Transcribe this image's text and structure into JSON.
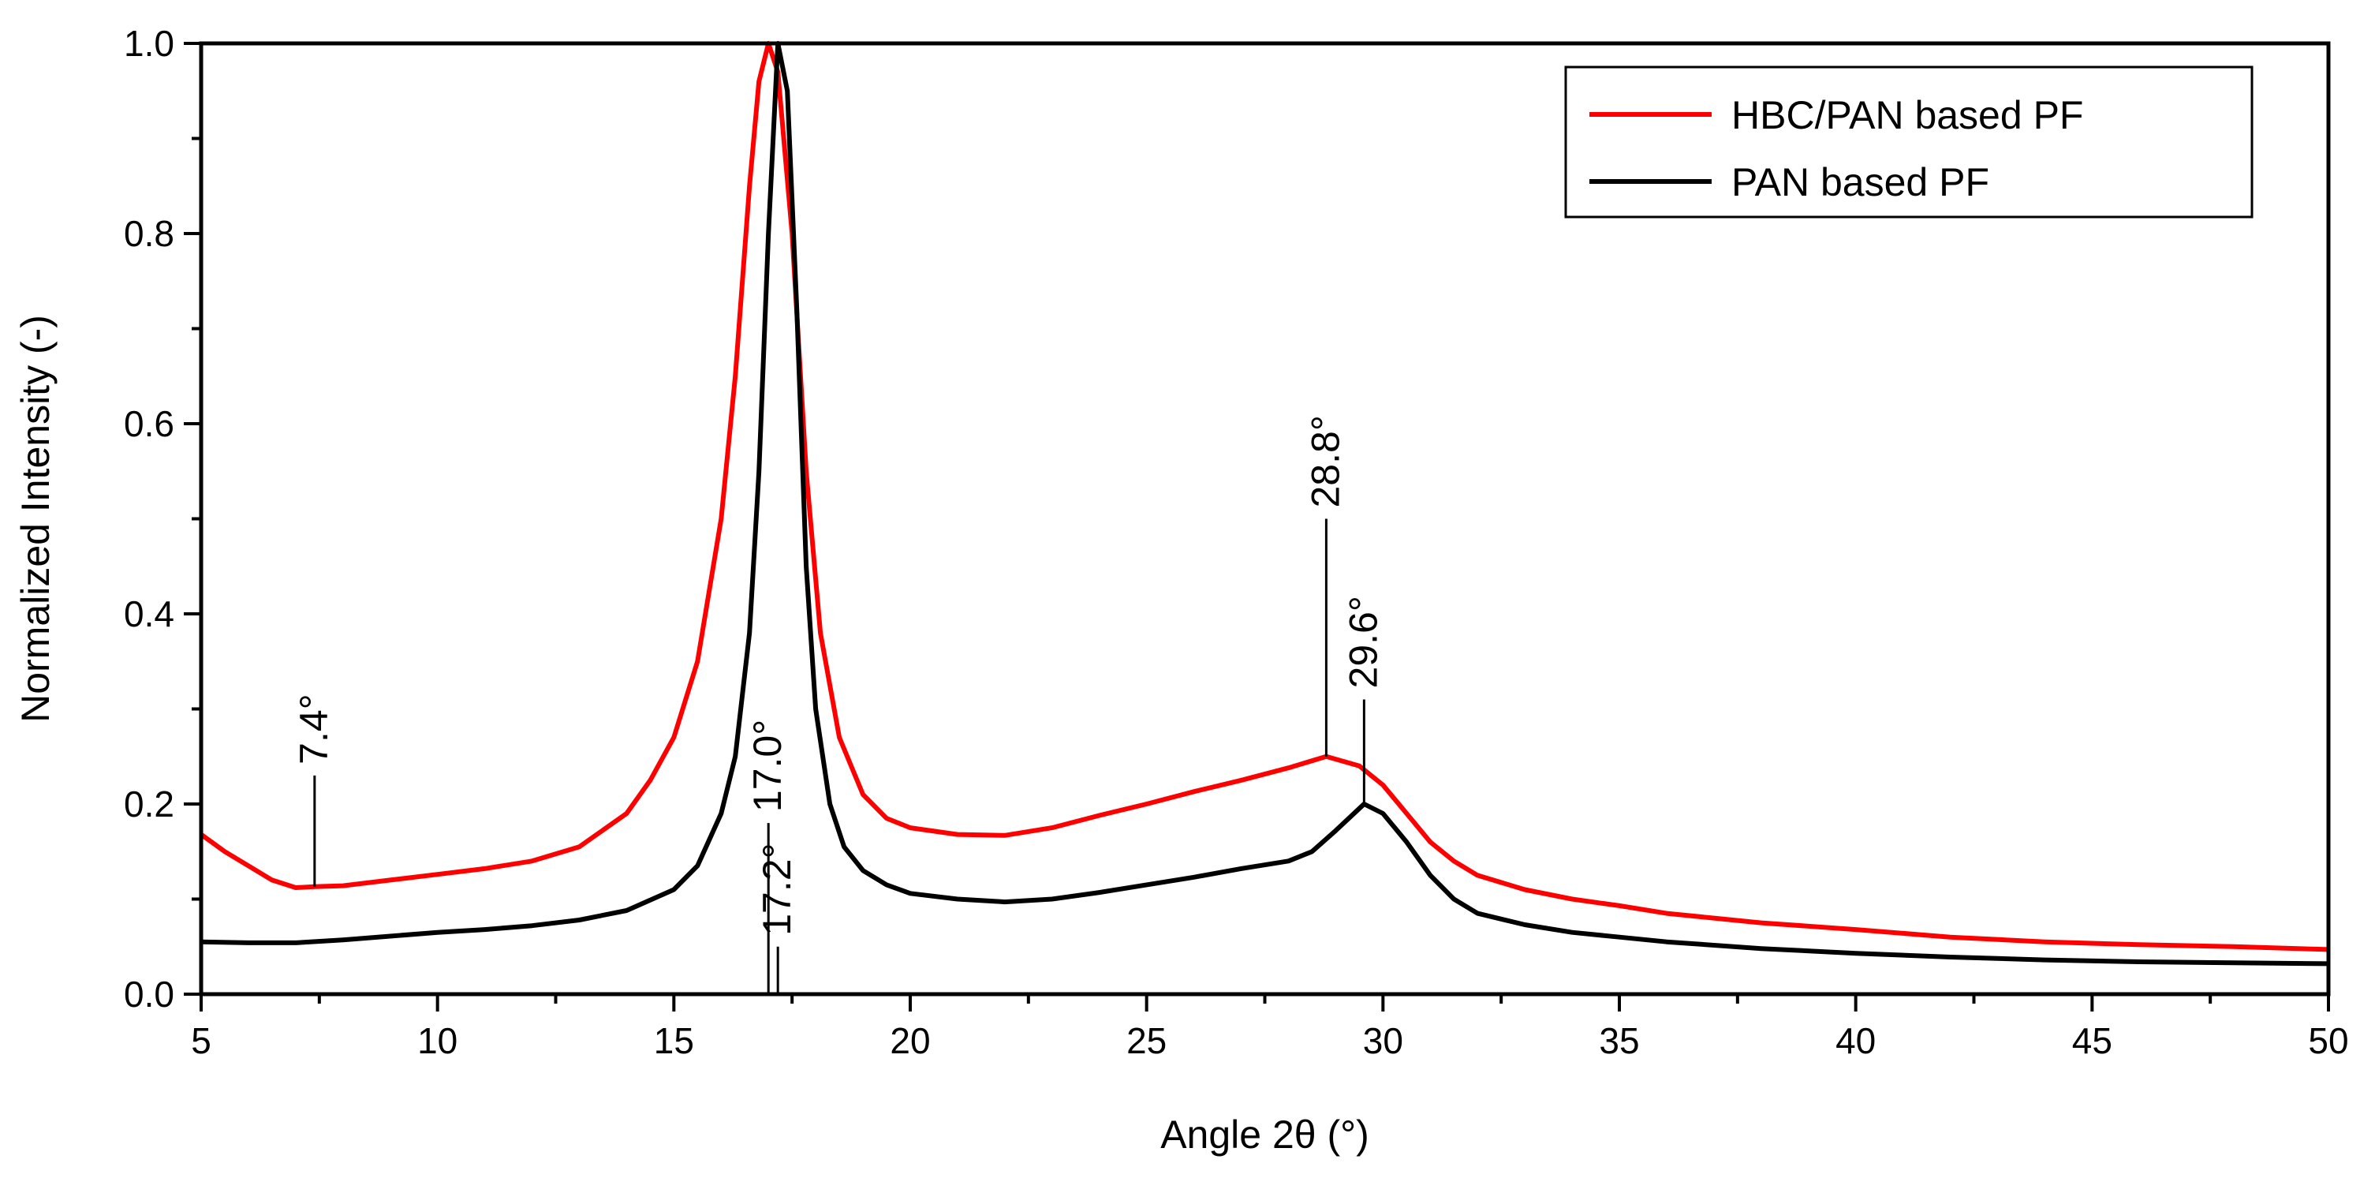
{
  "chart_data": {
    "type": "line",
    "title": "",
    "xlabel": "Angle 2θ (°)",
    "ylabel": "Normalized Intensity (-)",
    "xlim": [
      5,
      50
    ],
    "ylim": [
      0,
      1.0
    ],
    "x_ticks": [
      5,
      10,
      15,
      20,
      25,
      30,
      35,
      40,
      45,
      50
    ],
    "x_tick_labels": [
      "5",
      "10",
      "15",
      "20",
      "25",
      "30",
      "35",
      "40",
      "45",
      "50"
    ],
    "y_ticks": [
      0,
      0.2,
      0.4,
      0.6,
      0.8,
      1.0
    ],
    "y_tick_labels": [
      "0.0",
      "0.2",
      "0.4",
      "0.6",
      "0.8",
      "1.0"
    ],
    "legend_position": "top-right",
    "series": [
      {
        "name": "HBC/PAN based PF",
        "color": "#ff0000",
        "points": [
          [
            5,
            0.168
          ],
          [
            5.5,
            0.15
          ],
          [
            6,
            0.135
          ],
          [
            6.5,
            0.12
          ],
          [
            7,
            0.112
          ],
          [
            7.4,
            0.113
          ],
          [
            8,
            0.114
          ],
          [
            9,
            0.12
          ],
          [
            10,
            0.126
          ],
          [
            11,
            0.132
          ],
          [
            12,
            0.14
          ],
          [
            13,
            0.155
          ],
          [
            14,
            0.19
          ],
          [
            14.5,
            0.225
          ],
          [
            15,
            0.27
          ],
          [
            15.5,
            0.35
          ],
          [
            16,
            0.5
          ],
          [
            16.3,
            0.65
          ],
          [
            16.6,
            0.85
          ],
          [
            16.8,
            0.96
          ],
          [
            17,
            1.0
          ],
          [
            17.2,
            0.97
          ],
          [
            17.5,
            0.8
          ],
          [
            17.8,
            0.55
          ],
          [
            18.1,
            0.38
          ],
          [
            18.5,
            0.27
          ],
          [
            19,
            0.21
          ],
          [
            19.5,
            0.185
          ],
          [
            20,
            0.175
          ],
          [
            21,
            0.168
          ],
          [
            22,
            0.167
          ],
          [
            23,
            0.175
          ],
          [
            24,
            0.188
          ],
          [
            25,
            0.2
          ],
          [
            26,
            0.213
          ],
          [
            27,
            0.225
          ],
          [
            28,
            0.238
          ],
          [
            28.8,
            0.25
          ],
          [
            29.5,
            0.24
          ],
          [
            30,
            0.22
          ],
          [
            30.5,
            0.19
          ],
          [
            31,
            0.16
          ],
          [
            31.5,
            0.14
          ],
          [
            32,
            0.125
          ],
          [
            33,
            0.11
          ],
          [
            34,
            0.1
          ],
          [
            35,
            0.093
          ],
          [
            36,
            0.085
          ],
          [
            37,
            0.08
          ],
          [
            38,
            0.075
          ],
          [
            40,
            0.068
          ],
          [
            42,
            0.06
          ],
          [
            44,
            0.055
          ],
          [
            46,
            0.052
          ],
          [
            48,
            0.05
          ],
          [
            50,
            0.047
          ]
        ]
      },
      {
        "name": "PAN based PF",
        "color": "#000000",
        "points": [
          [
            5,
            0.055
          ],
          [
            6,
            0.054
          ],
          [
            7,
            0.054
          ],
          [
            8,
            0.057
          ],
          [
            9,
            0.061
          ],
          [
            10,
            0.065
          ],
          [
            11,
            0.068
          ],
          [
            12,
            0.072
          ],
          [
            13,
            0.078
          ],
          [
            14,
            0.088
          ],
          [
            15,
            0.11
          ],
          [
            15.5,
            0.135
          ],
          [
            16,
            0.19
          ],
          [
            16.3,
            0.25
          ],
          [
            16.6,
            0.38
          ],
          [
            16.8,
            0.55
          ],
          [
            17,
            0.8
          ],
          [
            17.2,
            1.0
          ],
          [
            17.4,
            0.95
          ],
          [
            17.6,
            0.72
          ],
          [
            17.8,
            0.45
          ],
          [
            18,
            0.3
          ],
          [
            18.3,
            0.2
          ],
          [
            18.6,
            0.155
          ],
          [
            19,
            0.13
          ],
          [
            19.5,
            0.115
          ],
          [
            20,
            0.106
          ],
          [
            21,
            0.1
          ],
          [
            22,
            0.097
          ],
          [
            23,
            0.1
          ],
          [
            24,
            0.107
          ],
          [
            25,
            0.115
          ],
          [
            26,
            0.123
          ],
          [
            27,
            0.132
          ],
          [
            28,
            0.14
          ],
          [
            28.5,
            0.15
          ],
          [
            29,
            0.172
          ],
          [
            29.6,
            0.2
          ],
          [
            30,
            0.19
          ],
          [
            30.5,
            0.16
          ],
          [
            31,
            0.125
          ],
          [
            31.5,
            0.1
          ],
          [
            32,
            0.085
          ],
          [
            33,
            0.073
          ],
          [
            34,
            0.065
          ],
          [
            35,
            0.06
          ],
          [
            36,
            0.055
          ],
          [
            38,
            0.048
          ],
          [
            40,
            0.043
          ],
          [
            42,
            0.039
          ],
          [
            44,
            0.036
          ],
          [
            46,
            0.034
          ],
          [
            48,
            0.033
          ],
          [
            50,
            0.032
          ]
        ]
      }
    ],
    "annotations": [
      {
        "text": "7.4°",
        "x": 7.4,
        "y": 0.113,
        "line_top": 0.23
      },
      {
        "text": "17.0°",
        "x": 17.0,
        "y": 0.0,
        "line_top": 0.18
      },
      {
        "text": "17.2°",
        "x": 17.2,
        "y": 0.0,
        "line_top": 0.05
      },
      {
        "text": "28.8°",
        "x": 28.8,
        "y": 0.25,
        "line_top": 0.5
      },
      {
        "text": "29.6°",
        "x": 29.6,
        "y": 0.2,
        "line_top": 0.31
      }
    ]
  }
}
